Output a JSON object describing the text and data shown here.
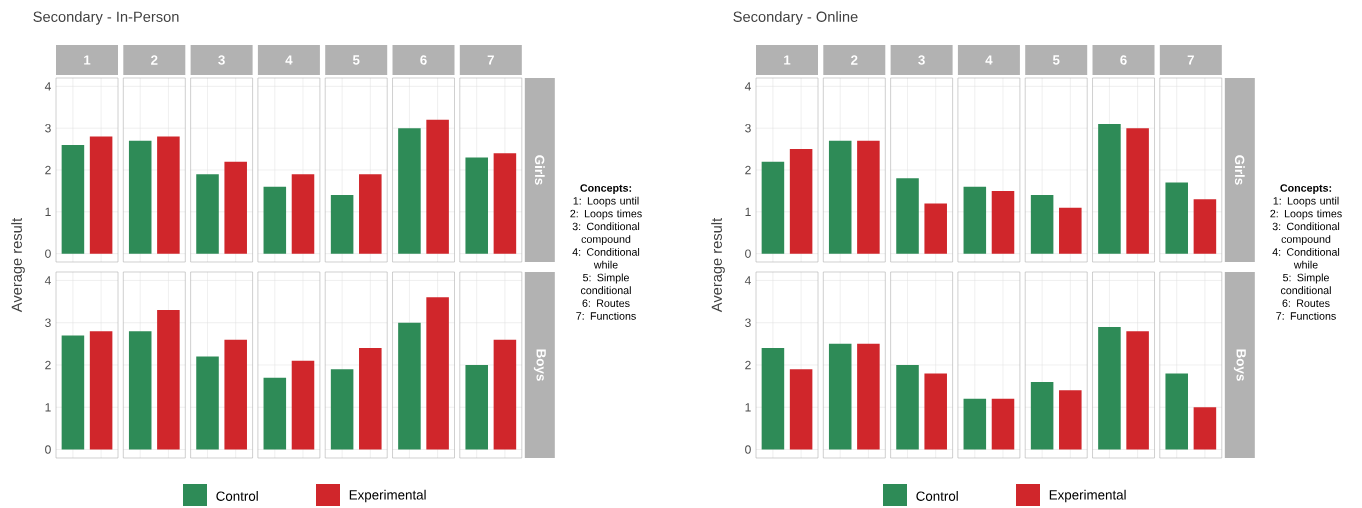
{
  "chart_data": [
    {
      "type": "bar",
      "title": "Secondary - In-Person",
      "ylabel": "Average result",
      "y2label": "Girls",
      "categories": [
        "1",
        "2",
        "3",
        "4",
        "5",
        "6",
        "7"
      ],
      "series": [
        {
          "color": "#2e8b57",
          "values": [
            2.6,
            2.7,
            1.9,
            1.6,
            1.4,
            3.0,
            2.3
          ]
        },
        {
          "color": "#d0262b",
          "values": [
            2.8,
            2.8,
            2.2,
            1.9,
            1.9,
            3.2,
            2.4
          ]
        }
      ],
      "ylim": [
        -0.2,
        4.2
      ],
      "yticks": [
        0,
        1,
        2,
        3,
        4
      ],
      "grid": true,
      "annotations": [
        "Concepts:",
        "1: Loops until",
        "2: Loops times",
        "3: Conditional compound",
        "4: Conditional while",
        "5:  Simple conditional",
        "6: Routes",
        "7: Functions"
      ]
    },
    {
      "type": "bar",
      "y2label": "Boys",
      "categories": [
        "1",
        "2",
        "3",
        "4",
        "5",
        "6",
        "7"
      ],
      "series": [
        {
          "name": "Control",
          "color": "#2e8b57",
          "values": [
            2.7,
            2.8,
            2.2,
            1.7,
            1.9,
            3.0,
            2.0
          ]
        },
        {
          "name": "Experimental",
          "color": "#d0262b",
          "values": [
            2.8,
            3.3,
            2.6,
            2.1,
            2.4,
            3.6,
            2.6
          ]
        }
      ],
      "ylim": [
        -0.2,
        4.2
      ],
      "yticks": [
        0,
        1,
        2,
        3,
        4
      ],
      "grid": true,
      "tick_labels": "y",
      "legend": "bottom"
    },
    {
      "type": "bar",
      "title": "Secondary - Online",
      "ylabel": "Average result",
      "y2label": "Girls",
      "categories": [
        "1",
        "2",
        "3",
        "4",
        "5",
        "6",
        "7"
      ],
      "series": [
        {
          "color": "#2e8b57",
          "values": [
            2.2,
            2.7,
            1.8,
            1.6,
            1.4,
            3.1,
            1.7
          ]
        },
        {
          "color": "#d0262b",
          "values": [
            2.5,
            2.7,
            1.2,
            1.5,
            1.1,
            3.0,
            1.3
          ]
        }
      ],
      "ylim": [
        -0.2,
        4.2
      ],
      "yticks": [
        0,
        1,
        2,
        3,
        4
      ],
      "grid": true,
      "annotations": [
        "Concepts:",
        "1: Loops until",
        "2: Loops times",
        "3: Conditional compound",
        "4: Conditional while",
        "5:  Simple conditional",
        "6: Routes",
        "7: Functions"
      ]
    },
    {
      "type": "bar",
      "y2label": "Boys",
      "categories": [
        "1",
        "2",
        "3",
        "4",
        "5",
        "6",
        "7"
      ],
      "series": [
        {
          "name": "Control",
          "color": "#2e8b57",
          "values": [
            2.4,
            2.5,
            2.0,
            1.2,
            1.6,
            2.9,
            1.8
          ]
        },
        {
          "name": "Experimental",
          "color": "#d0262b",
          "values": [
            1.9,
            2.5,
            1.8,
            1.2,
            1.4,
            2.8,
            1.0
          ]
        }
      ],
      "ylim": [
        -0.2,
        4.2
      ],
      "yticks": [
        0,
        1,
        2,
        3,
        4
      ],
      "grid": true,
      "tick_labels": "y",
      "legend": "bottom"
    }
  ]
}
